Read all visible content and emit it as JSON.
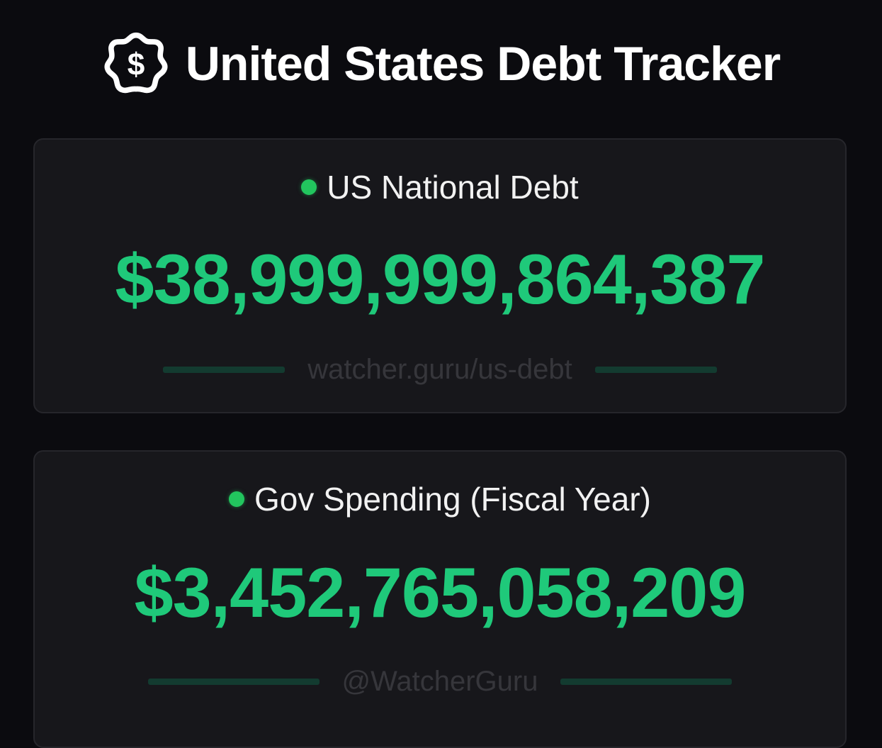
{
  "header": {
    "title": "United States Debt Tracker",
    "icon": "dollar-badge-icon"
  },
  "colors": {
    "green": "#1fc97a",
    "dot": "#22c55e",
    "background": "#0b0b0f",
    "card": "#17171b"
  },
  "cards": [
    {
      "label": "US National Debt",
      "value": "$38,999,999,864,387",
      "footer": "watcher.guru/us-debt"
    },
    {
      "label": "Gov Spending (Fiscal Year)",
      "value": "$3,452,765,058,209",
      "footer": "@WatcherGuru"
    }
  ]
}
